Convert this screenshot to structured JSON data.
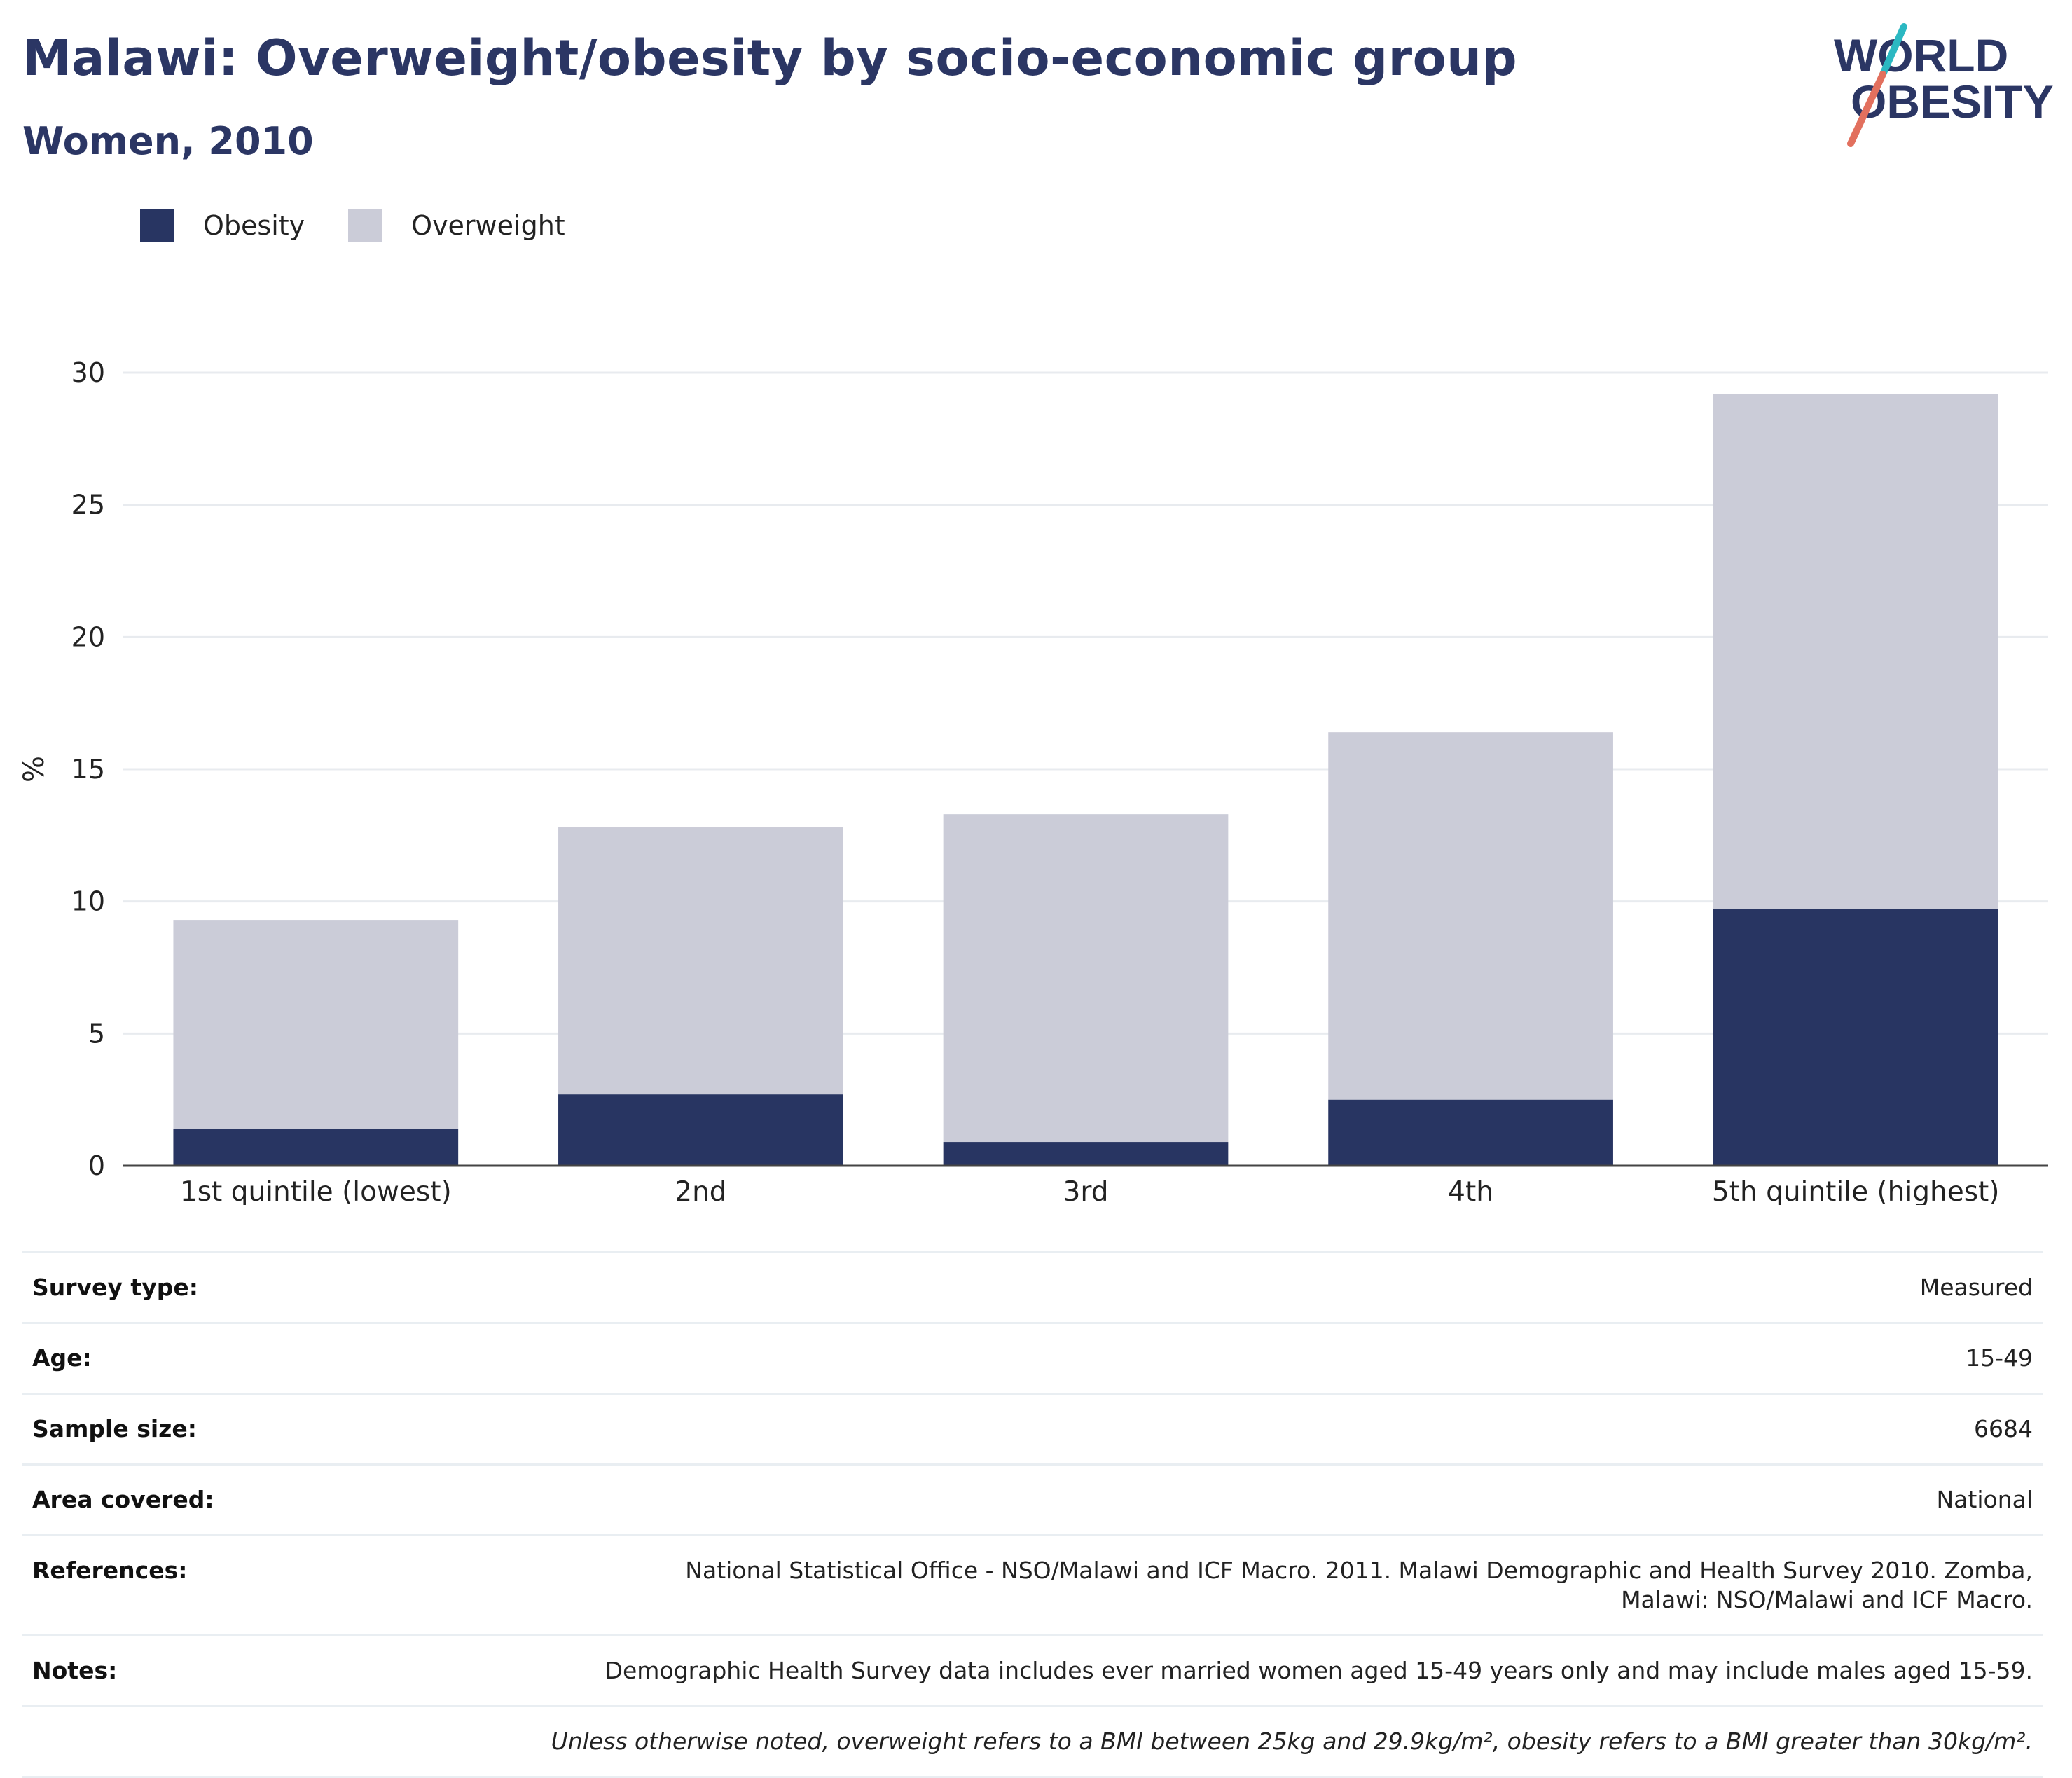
{
  "title": "Malawi: Overweight/obesity by socio-economic group",
  "subtitle": "Women, 2010",
  "logo": {
    "line1": "WORLD",
    "line2": "OBESITY"
  },
  "colors": {
    "obesity": "#283562",
    "overweight": "#cbccd8",
    "title": "#2b3664",
    "logo_teal": "#2bb8c2",
    "logo_coral": "#e2705e"
  },
  "chart_data": {
    "type": "bar",
    "stacked": true,
    "categories": [
      "1st quintile (lowest)",
      "2nd",
      "3rd",
      "4th",
      "5th quintile (highest)"
    ],
    "series": [
      {
        "name": "Obesity",
        "values": [
          1.4,
          2.7,
          0.9,
          2.5,
          9.7
        ]
      },
      {
        "name": "Overweight",
        "values": [
          7.9,
          10.1,
          12.4,
          13.9,
          19.5
        ]
      }
    ],
    "ylabel": "%",
    "xlabel": "",
    "ylim": [
      0,
      30
    ],
    "yticks": [
      0,
      5,
      10,
      15,
      20,
      25,
      30
    ],
    "grid": true,
    "legend_position": "top-left"
  },
  "table": [
    {
      "label": "Survey type:",
      "value": "Measured"
    },
    {
      "label": "Age:",
      "value": "15-49"
    },
    {
      "label": "Sample size:",
      "value": "6684"
    },
    {
      "label": "Area covered:",
      "value": "National"
    },
    {
      "label": "References:",
      "value": "National Statistical Office - NSO/Malawi and ICF Macro. 2011. Malawi Demographic and Health Survey 2010. Zomba, Malawi: NSO/Malawi and ICF Macro."
    },
    {
      "label": "Notes:",
      "value": "Demographic Health Survey data includes ever married women aged 15-49 years only and may include males aged 15-59."
    }
  ],
  "footnote": "Unless otherwise noted, overweight refers to a BMI between 25kg and 29.9kg/m², obesity refers to a BMI greater than 30kg/m²."
}
